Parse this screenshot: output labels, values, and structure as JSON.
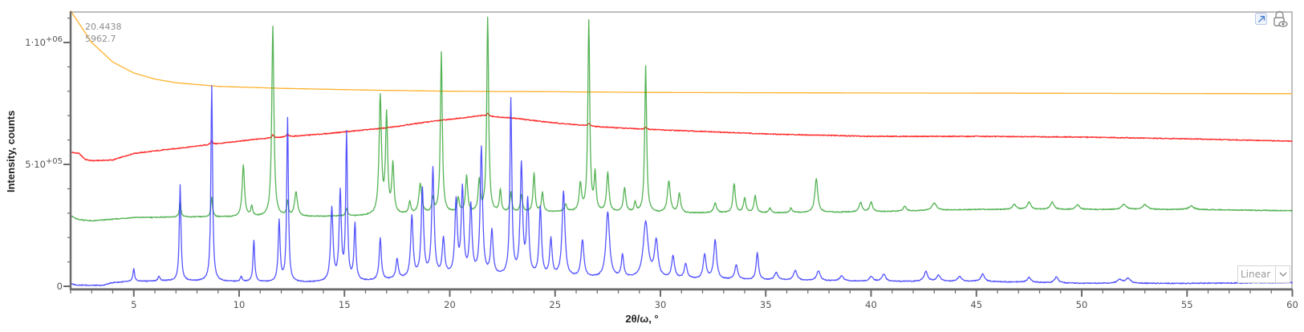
{
  "cursor_readout": {
    "x": "20.4438",
    "y": "5962.7"
  },
  "scale_dropdown": {
    "selected": "Linear"
  },
  "toolbar": {
    "icons": [
      "expand-icon",
      "lock-view-icon"
    ]
  },
  "chart_data": {
    "type": "line",
    "title": "",
    "xlabel": "2θ/ω, °",
    "ylabel": "Intensity, counts",
    "xlim": [
      2,
      60
    ],
    "ylim": [
      -15000,
      1135000
    ],
    "x_ticks": [
      5,
      10,
      15,
      20,
      25,
      30,
      35,
      40,
      45,
      50,
      55,
      60
    ],
    "x_tick_labels": [
      "5",
      "10",
      "15",
      "20",
      "25",
      "30",
      "35",
      "40",
      "45",
      "50",
      "55",
      "60"
    ],
    "y_ticks": [
      0,
      500000,
      1000000
    ],
    "y_tick_labels": [
      "0",
      "5·10+05",
      "1·10+06"
    ],
    "y_tick_labels_parts": [
      {
        "mant": "0",
        "exp": ""
      },
      {
        "mant": "5·10",
        "exp": "+05"
      },
      {
        "mant": "1·10",
        "exp": "+06"
      }
    ],
    "grid": false,
    "legend": "none",
    "series": [
      {
        "name": "orange",
        "color": "#ffad1f",
        "baseline": [
          [
            2,
            1130000
          ],
          [
            3,
            1000000
          ],
          [
            4,
            920000
          ],
          [
            5,
            875000
          ],
          [
            6,
            850000
          ],
          [
            7,
            835000
          ],
          [
            9,
            820000
          ],
          [
            12,
            812000
          ],
          [
            16,
            805000
          ],
          [
            20,
            800000
          ],
          [
            25,
            798000
          ],
          [
            30,
            795000
          ],
          [
            40,
            793000
          ],
          [
            60,
            790000
          ]
        ],
        "peaks": []
      },
      {
        "name": "red",
        "color": "#ff2020",
        "baseline": [
          [
            2,
            550000
          ],
          [
            2.4,
            545000
          ],
          [
            2.7,
            520000
          ],
          [
            3,
            515000
          ],
          [
            4,
            518000
          ],
          [
            5,
            545000
          ],
          [
            8,
            575000
          ],
          [
            11,
            605000
          ],
          [
            14,
            625000
          ],
          [
            17,
            650000
          ],
          [
            19,
            675000
          ],
          [
            21.5,
            700000
          ],
          [
            23,
            690000
          ],
          [
            25,
            670000
          ],
          [
            27,
            655000
          ],
          [
            29,
            645000
          ],
          [
            32,
            635000
          ],
          [
            35,
            625000
          ],
          [
            40,
            615000
          ],
          [
            45,
            615000
          ],
          [
            50,
            612000
          ],
          [
            55,
            605000
          ],
          [
            60,
            595000
          ]
        ],
        "peaks": [
          [
            8.7,
            15000,
            0.08
          ],
          [
            11.6,
            12000,
            0.08
          ],
          [
            12.3,
            10000,
            0.08
          ],
          [
            21.8,
            10000,
            0.1
          ],
          [
            26.6,
            10000,
            0.1
          ],
          [
            29.3,
            8000,
            0.1
          ]
        ]
      },
      {
        "name": "green",
        "color": "#2aa02a",
        "baseline": [
          [
            2,
            290000
          ],
          [
            2.3,
            275000
          ],
          [
            3,
            268000
          ],
          [
            4,
            275000
          ],
          [
            5,
            282000
          ],
          [
            8,
            284000
          ],
          [
            10,
            284000
          ],
          [
            14,
            286000
          ],
          [
            17,
            290000
          ],
          [
            18,
            295000
          ],
          [
            20,
            300000
          ],
          [
            22,
            300000
          ],
          [
            25,
            305000
          ],
          [
            30,
            300000
          ],
          [
            35,
            300000
          ],
          [
            40,
            305000
          ],
          [
            45,
            315000
          ],
          [
            50,
            315000
          ],
          [
            55,
            315000
          ],
          [
            60,
            310000
          ]
        ],
        "peaks": [
          [
            7.2,
            60000,
            0.07
          ],
          [
            8.7,
            80000,
            0.07
          ],
          [
            10.2,
            210000,
            0.1
          ],
          [
            10.6,
            40000,
            0.08
          ],
          [
            11.6,
            780000,
            0.09
          ],
          [
            12.3,
            60000,
            0.07
          ],
          [
            12.7,
            100000,
            0.12
          ],
          [
            15.1,
            30000,
            0.08
          ],
          [
            16.7,
            480000,
            0.1
          ],
          [
            17.0,
            400000,
            0.09
          ],
          [
            17.3,
            200000,
            0.09
          ],
          [
            18.1,
            50000,
            0.08
          ],
          [
            18.6,
            120000,
            0.12
          ],
          [
            19.2,
            60000,
            0.08
          ],
          [
            19.6,
            660000,
            0.08
          ],
          [
            20.4,
            60000,
            0.09
          ],
          [
            20.8,
            150000,
            0.09
          ],
          [
            21.4,
            130000,
            0.09
          ],
          [
            21.8,
            800000,
            0.08
          ],
          [
            22.4,
            90000,
            0.08
          ],
          [
            22.9,
            80000,
            0.08
          ],
          [
            23.4,
            70000,
            0.09
          ],
          [
            24.0,
            160000,
            0.08
          ],
          [
            24.4,
            80000,
            0.08
          ],
          [
            25.5,
            30000,
            0.1
          ],
          [
            26.2,
            110000,
            0.1
          ],
          [
            26.6,
            780000,
            0.08
          ],
          [
            26.9,
            150000,
            0.08
          ],
          [
            27.5,
            160000,
            0.1
          ],
          [
            28.3,
            100000,
            0.1
          ],
          [
            28.8,
            40000,
            0.08
          ],
          [
            29.3,
            600000,
            0.08
          ],
          [
            30.4,
            130000,
            0.12
          ],
          [
            30.9,
            80000,
            0.1
          ],
          [
            32.6,
            40000,
            0.12
          ],
          [
            33.5,
            120000,
            0.1
          ],
          [
            34.0,
            60000,
            0.1
          ],
          [
            34.5,
            70000,
            0.1
          ],
          [
            35.2,
            20000,
            0.1
          ],
          [
            36.2,
            20000,
            0.1
          ],
          [
            37.4,
            140000,
            0.12
          ],
          [
            39.5,
            40000,
            0.12
          ],
          [
            40.0,
            40000,
            0.12
          ],
          [
            41.6,
            20000,
            0.12
          ],
          [
            43.0,
            30000,
            0.2
          ],
          [
            46.8,
            20000,
            0.15
          ],
          [
            47.5,
            30000,
            0.15
          ],
          [
            48.6,
            30000,
            0.15
          ],
          [
            49.8,
            20000,
            0.15
          ],
          [
            52.0,
            20000,
            0.2
          ],
          [
            53.0,
            20000,
            0.2
          ],
          [
            55.2,
            15000,
            0.2
          ]
        ]
      },
      {
        "name": "blue",
        "color": "#2a2aff",
        "baseline": [
          [
            2,
            10000
          ],
          [
            2.3,
            5000
          ],
          [
            3.5,
            3000
          ],
          [
            4,
            15000
          ],
          [
            5,
            20000
          ],
          [
            7,
            22000
          ],
          [
            10,
            18000
          ],
          [
            13,
            15000
          ],
          [
            16,
            20000
          ],
          [
            18,
            30000
          ],
          [
            20,
            40000
          ],
          [
            22,
            40000
          ],
          [
            25,
            35000
          ],
          [
            30,
            30000
          ],
          [
            35,
            25000
          ],
          [
            40,
            20000
          ],
          [
            45,
            20000
          ],
          [
            50,
            12000
          ],
          [
            55,
            12000
          ],
          [
            60,
            15000
          ]
        ],
        "peaks": [
          [
            5.0,
            50000,
            0.07
          ],
          [
            6.2,
            20000,
            0.08
          ],
          [
            7.2,
            395000,
            0.07
          ],
          [
            8.7,
            800000,
            0.07
          ],
          [
            10.1,
            20000,
            0.08
          ],
          [
            10.7,
            170000,
            0.07
          ],
          [
            11.9,
            250000,
            0.08
          ],
          [
            12.3,
            670000,
            0.07
          ],
          [
            14.4,
            300000,
            0.1
          ],
          [
            14.8,
            360000,
            0.09
          ],
          [
            15.1,
            600000,
            0.07
          ],
          [
            15.5,
            230000,
            0.08
          ],
          [
            16.7,
            170000,
            0.09
          ],
          [
            17.5,
            80000,
            0.1
          ],
          [
            18.2,
            250000,
            0.1
          ],
          [
            18.7,
            360000,
            0.1
          ],
          [
            19.2,
            440000,
            0.1
          ],
          [
            19.7,
            150000,
            0.1
          ],
          [
            20.3,
            300000,
            0.1
          ],
          [
            20.6,
            350000,
            0.1
          ],
          [
            21.0,
            280000,
            0.1
          ],
          [
            21.5,
            520000,
            0.1
          ],
          [
            22.0,
            180000,
            0.1
          ],
          [
            22.9,
            720000,
            0.08
          ],
          [
            23.4,
            450000,
            0.1
          ],
          [
            23.7,
            300000,
            0.1
          ],
          [
            24.3,
            280000,
            0.1
          ],
          [
            24.8,
            150000,
            0.1
          ],
          [
            25.4,
            350000,
            0.12
          ],
          [
            26.3,
            150000,
            0.12
          ],
          [
            27.5,
            270000,
            0.15
          ],
          [
            28.2,
            90000,
            0.1
          ],
          [
            29.3,
            230000,
            0.2
          ],
          [
            29.8,
            150000,
            0.15
          ],
          [
            30.6,
            90000,
            0.12
          ],
          [
            31.2,
            60000,
            0.12
          ],
          [
            32.1,
            100000,
            0.12
          ],
          [
            32.6,
            160000,
            0.12
          ],
          [
            33.6,
            60000,
            0.12
          ],
          [
            34.6,
            110000,
            0.1
          ],
          [
            35.5,
            30000,
            0.15
          ],
          [
            36.4,
            40000,
            0.15
          ],
          [
            37.5,
            40000,
            0.15
          ],
          [
            38.6,
            20000,
            0.15
          ],
          [
            40.0,
            20000,
            0.15
          ],
          [
            40.6,
            30000,
            0.15
          ],
          [
            42.6,
            40000,
            0.15
          ],
          [
            43.2,
            25000,
            0.15
          ],
          [
            44.2,
            20000,
            0.15
          ],
          [
            45.3,
            30000,
            0.15
          ],
          [
            47.5,
            20000,
            0.15
          ],
          [
            48.8,
            25000,
            0.15
          ],
          [
            51.8,
            15000,
            0.2
          ],
          [
            52.2,
            20000,
            0.2
          ]
        ]
      }
    ]
  }
}
